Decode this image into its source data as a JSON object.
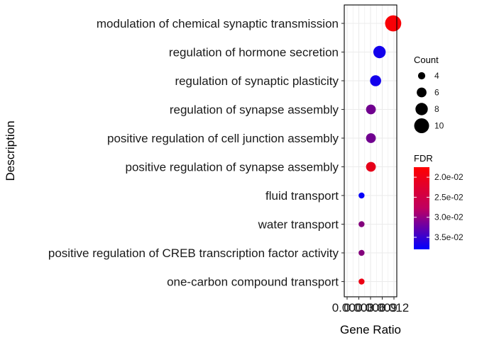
{
  "chart_data": {
    "type": "scatter",
    "xlabel": "Gene Ratio",
    "ylabel": "Description",
    "xlim": [
      0,
      0.012
    ],
    "x_ticks": [
      "0.000",
      "0.003",
      "0.006",
      "0.009",
      "0.012"
    ],
    "categories": [
      "modulation of chemical synaptic transmission",
      "regulation of hormone secretion",
      "regulation of synaptic plasticity",
      "regulation of synapse assembly",
      "positive regulation of cell junction assembly",
      "positive regulation of synapse assembly",
      "fluid transport",
      "water transport",
      "positive regulation of CREB transcription factor activity",
      "one-carbon compound transport"
    ],
    "points": [
      {
        "description": "modulation of chemical synaptic transmission",
        "gene_ratio": 0.0118,
        "count": 11,
        "fdr": 0.018
      },
      {
        "description": "regulation of hormone secretion",
        "gene_ratio": 0.0083,
        "count": 8,
        "fdr": 0.0365
      },
      {
        "description": "regulation of synaptic plasticity",
        "gene_ratio": 0.0073,
        "count": 7,
        "fdr": 0.0365
      },
      {
        "description": "regulation of synapse assembly",
        "gene_ratio": 0.0061,
        "count": 6,
        "fdr": 0.029
      },
      {
        "description": "positive regulation of cell junction assembly",
        "gene_ratio": 0.0061,
        "count": 6,
        "fdr": 0.029
      },
      {
        "description": "positive regulation of synapse assembly",
        "gene_ratio": 0.0061,
        "count": 6,
        "fdr": 0.0195
      },
      {
        "description": "fluid transport",
        "gene_ratio": 0.0037,
        "count": 3,
        "fdr": 0.0375
      },
      {
        "description": "water transport",
        "gene_ratio": 0.0037,
        "count": 3,
        "fdr": 0.0275
      },
      {
        "description": "positive regulation of CREB transcription factor activity",
        "gene_ratio": 0.0037,
        "count": 3,
        "fdr": 0.0275
      },
      {
        "description": "one-carbon compound transport",
        "gene_ratio": 0.0037,
        "count": 3,
        "fdr": 0.019
      }
    ],
    "size_legend": {
      "title": "Count",
      "values": [
        4,
        6,
        8,
        10
      ]
    },
    "color_legend": {
      "title": "FDR",
      "range": [
        0.0175,
        0.038
      ],
      "ticks": [
        {
          "value": 0.02,
          "label": "2.0e-02"
        },
        {
          "value": 0.025,
          "label": "2.5e-02"
        },
        {
          "value": 0.03,
          "label": "3.0e-02"
        },
        {
          "value": 0.035,
          "label": "3.5e-02"
        }
      ],
      "low_color": "#ff0000",
      "high_color": "#0000ff"
    },
    "legend_position": "right",
    "grid": true,
    "panel_border_color": "#000000",
    "grid_color": "#ebebeb"
  }
}
